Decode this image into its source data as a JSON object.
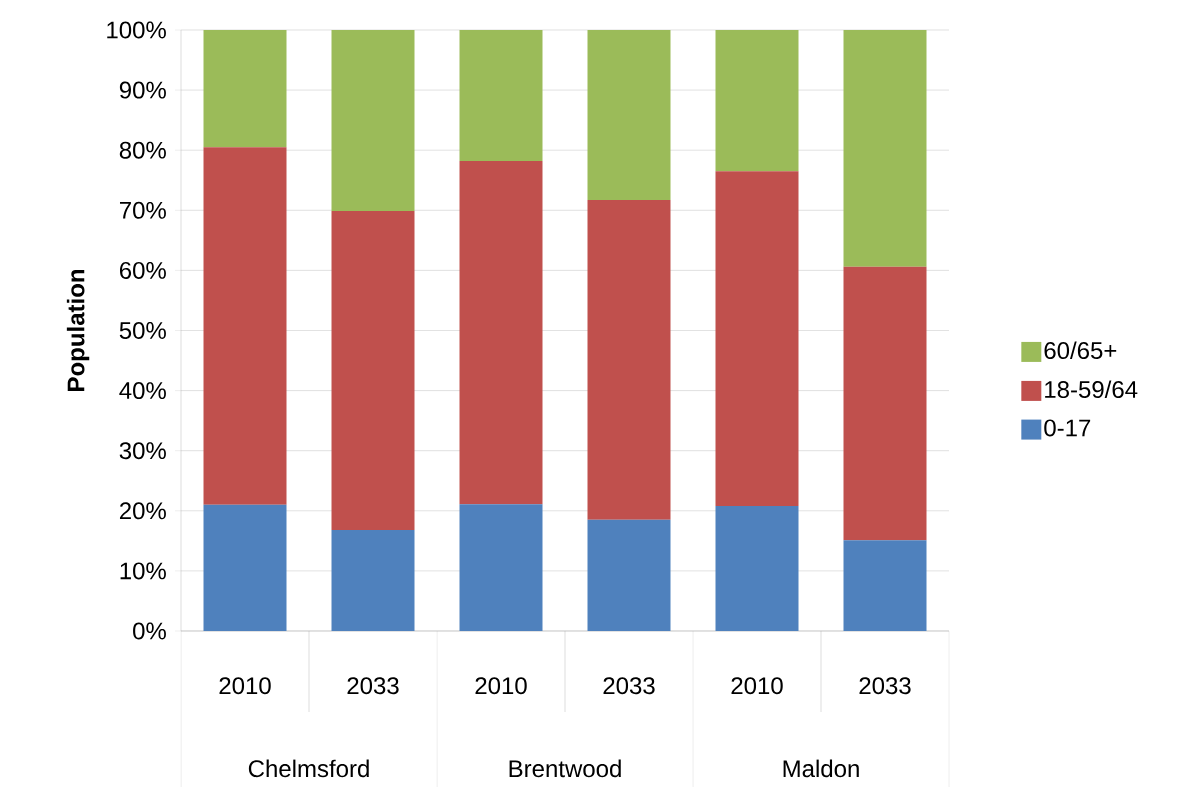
{
  "chart_data": {
    "type": "bar",
    "stacked": true,
    "ylabel": "Population",
    "categories": [
      "2010",
      "2033",
      "2010",
      "2033",
      "2010",
      "2033"
    ],
    "annotations": [
      "Chelmsford",
      "Brentwood",
      "Maldon"
    ],
    "series": [
      {
        "name": "0-17",
        "color": "#4f81bd",
        "values": [
          21.0,
          16.8,
          21.1,
          18.5,
          20.8,
          15.1
        ]
      },
      {
        "name": "18-59/64",
        "color": "#c0504d",
        "values": [
          59.5,
          53.1,
          57.1,
          53.2,
          55.7,
          45.5
        ]
      },
      {
        "name": "60/65+",
        "color": "#9bbb59",
        "values": [
          19.5,
          30.1,
          21.8,
          28.3,
          23.5,
          39.4
        ]
      }
    ],
    "ylim": [
      0,
      100
    ],
    "yticks": [
      {
        "value": 0,
        "label": "0%"
      },
      {
        "value": 10,
        "label": "10%"
      },
      {
        "value": 20,
        "label": "20%"
      },
      {
        "value": 30,
        "label": "30%"
      },
      {
        "value": 40,
        "label": "40%"
      },
      {
        "value": 50,
        "label": "50%"
      },
      {
        "value": 60,
        "label": "60%"
      },
      {
        "value": 70,
        "label": "70%"
      },
      {
        "value": 80,
        "label": "80%"
      },
      {
        "value": 90,
        "label": "90%"
      },
      {
        "value": 100,
        "label": "100%"
      }
    ],
    "grid": "y",
    "legend": "right"
  }
}
